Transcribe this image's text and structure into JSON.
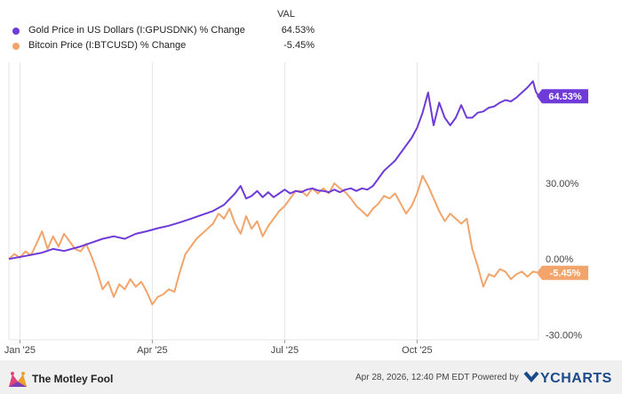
{
  "chart_data": {
    "type": "line",
    "legend": {
      "value_header": "VAL",
      "position": "top-left"
    },
    "series": [
      {
        "name": "Gold Price in US Dollars (I:GPUSDNK) % Change",
        "value_label": "64.53%",
        "end_value": 64.53,
        "color": "#6f3bd8",
        "points": [
          [
            0,
            0.0
          ],
          [
            3,
            1.2
          ],
          [
            6,
            2.5
          ],
          [
            8,
            4.0
          ],
          [
            10,
            3.2
          ],
          [
            13,
            5.0
          ],
          [
            15,
            6.5
          ],
          [
            17,
            8.0
          ],
          [
            19,
            9.0
          ],
          [
            21,
            8.0
          ],
          [
            23,
            10.0
          ],
          [
            25,
            11.0
          ],
          [
            27,
            12.2
          ],
          [
            29,
            13.2
          ],
          [
            31,
            14.5
          ],
          [
            33,
            16.0
          ],
          [
            35,
            17.5
          ],
          [
            37,
            19.0
          ],
          [
            39,
            21.5
          ],
          [
            41,
            26.0
          ],
          [
            42,
            29.0
          ],
          [
            43,
            24.0
          ],
          [
            44,
            25.0
          ],
          [
            45,
            27.0
          ],
          [
            46,
            24.5
          ],
          [
            47,
            26.5
          ],
          [
            48,
            24.5
          ],
          [
            49,
            26.0
          ],
          [
            50,
            27.5
          ],
          [
            51,
            26.0
          ],
          [
            52,
            27.0
          ],
          [
            53,
            26.5
          ],
          [
            54,
            27.5
          ],
          [
            55,
            28.0
          ],
          [
            56,
            27.2
          ],
          [
            57,
            27.0
          ],
          [
            58,
            26.5
          ],
          [
            59,
            27.5
          ],
          [
            60,
            26.5
          ],
          [
            61,
            27.5
          ],
          [
            62,
            28.0
          ],
          [
            63,
            27.0
          ],
          [
            64,
            28.0
          ],
          [
            65,
            27.5
          ],
          [
            66,
            29.0
          ],
          [
            67,
            32.0
          ],
          [
            68,
            35.0
          ],
          [
            69,
            37.0
          ],
          [
            70,
            39.0
          ],
          [
            71,
            42.0
          ],
          [
            72,
            45.0
          ],
          [
            73,
            48.0
          ],
          [
            74,
            52.0
          ],
          [
            75,
            58.0
          ],
          [
            76,
            66.0
          ],
          [
            77,
            53.0
          ],
          [
            78,
            62.0
          ],
          [
            79,
            56.0
          ],
          [
            80,
            53.0
          ],
          [
            81,
            56.0
          ],
          [
            82,
            61.0
          ],
          [
            83,
            56.0
          ],
          [
            84,
            56.0
          ],
          [
            85,
            58.0
          ],
          [
            86,
            58.5
          ],
          [
            87,
            60.0
          ],
          [
            88,
            60.5
          ],
          [
            89,
            62.0
          ],
          [
            90,
            63.0
          ],
          [
            91,
            62.5
          ],
          [
            92,
            64.0
          ],
          [
            93,
            66.0
          ],
          [
            94,
            68.0
          ],
          [
            95,
            70.5
          ],
          [
            95.5,
            66.5
          ],
          [
            96,
            64.53
          ]
        ]
      },
      {
        "name": "Bitcoin Price (I:BTCUSD) % Change",
        "value_label": "-5.45%",
        "end_value": -5.45,
        "color": "#f2a46a",
        "points": [
          [
            0,
            0.0
          ],
          [
            1,
            2.0
          ],
          [
            2,
            0.5
          ],
          [
            3,
            3.0
          ],
          [
            4,
            1.5
          ],
          [
            5,
            6.0
          ],
          [
            6,
            11.0
          ],
          [
            7,
            4.0
          ],
          [
            8,
            9.0
          ],
          [
            9,
            5.0
          ],
          [
            10,
            10.0
          ],
          [
            11,
            7.0
          ],
          [
            12,
            4.0
          ],
          [
            13,
            3.0
          ],
          [
            14,
            6.0
          ],
          [
            15,
            1.0
          ],
          [
            16,
            -5.0
          ],
          [
            17,
            -12.0
          ],
          [
            18,
            -9.0
          ],
          [
            19,
            -15.0
          ],
          [
            20,
            -10.0
          ],
          [
            21,
            -12.0
          ],
          [
            22,
            -8.0
          ],
          [
            23,
            -11.0
          ],
          [
            24,
            -9.0
          ],
          [
            25,
            -13.0
          ],
          [
            26,
            -18.0
          ],
          [
            27,
            -15.0
          ],
          [
            28,
            -14.0
          ],
          [
            29,
            -12.0
          ],
          [
            30,
            -13.0
          ],
          [
            31,
            -5.0
          ],
          [
            32,
            2.0
          ],
          [
            33,
            5.0
          ],
          [
            34,
            8.0
          ],
          [
            35,
            10.0
          ],
          [
            36,
            12.0
          ],
          [
            37,
            14.0
          ],
          [
            38,
            18.0
          ],
          [
            39,
            16.0
          ],
          [
            40,
            20.0
          ],
          [
            41,
            14.0
          ],
          [
            42,
            10.0
          ],
          [
            43,
            17.0
          ],
          [
            44,
            12.0
          ],
          [
            45,
            15.0
          ],
          [
            46,
            9.0
          ],
          [
            47,
            13.0
          ],
          [
            48,
            16.0
          ],
          [
            49,
            19.0
          ],
          [
            50,
            21.0
          ],
          [
            51,
            24.0
          ],
          [
            52,
            27.0
          ],
          [
            53,
            27.0
          ],
          [
            54,
            25.0
          ],
          [
            55,
            28.0
          ],
          [
            56,
            26.0
          ],
          [
            57,
            28.0
          ],
          [
            58,
            26.0
          ],
          [
            59,
            30.0
          ],
          [
            60,
            28.0
          ],
          [
            61,
            26.5
          ],
          [
            62,
            24.0
          ],
          [
            63,
            21.0
          ],
          [
            64,
            19.0
          ],
          [
            65,
            17.0
          ],
          [
            66,
            20.0
          ],
          [
            67,
            22.0
          ],
          [
            68,
            25.0
          ],
          [
            69,
            24.0
          ],
          [
            70,
            26.0
          ],
          [
            71,
            22.0
          ],
          [
            72,
            18.0
          ],
          [
            73,
            21.0
          ],
          [
            74,
            26.0
          ],
          [
            75,
            33.0
          ],
          [
            76,
            29.0
          ],
          [
            77,
            24.0
          ],
          [
            78,
            19.0
          ],
          [
            79,
            15.0
          ],
          [
            80,
            18.0
          ],
          [
            81,
            16.0
          ],
          [
            82,
            14.0
          ],
          [
            83,
            16.0
          ],
          [
            84,
            4.0
          ],
          [
            85,
            -3.0
          ],
          [
            86,
            -11.0
          ],
          [
            87,
            -6.0
          ],
          [
            88,
            -7.0
          ],
          [
            89,
            -4.0
          ],
          [
            90,
            -5.0
          ],
          [
            91,
            -8.0
          ],
          [
            92,
            -6.0
          ],
          [
            93,
            -5.0
          ],
          [
            94,
            -7.0
          ],
          [
            95,
            -5.0
          ],
          [
            96,
            -5.45
          ]
        ]
      }
    ],
    "x_ticks": [
      {
        "label": "Jan '25",
        "value": 2
      },
      {
        "label": "Apr '25",
        "value": 26
      },
      {
        "label": "Jul '25",
        "value": 50
      },
      {
        "label": "Oct '25",
        "value": 74
      }
    ],
    "xlim": [
      0,
      96
    ],
    "y_ticks": [
      {
        "label": "30.00%",
        "value": 30
      },
      {
        "label": "0.00%",
        "value": 0
      },
      {
        "label": "-30.00%",
        "value": -30
      }
    ],
    "ylim": [
      -32,
      78
    ],
    "grid": "vertical",
    "y_axis_position": "right"
  },
  "footer": {
    "brand": "The Motley Fool",
    "timestamp": "Apr 28, 2026, 12:40 PM EDT Powered by",
    "ycharts": "YCHARTS"
  },
  "colors": {
    "grid": "#e6e6e6",
    "axis_text": "#444444",
    "footer_bg": "#f0f0f0",
    "ycharts_blue": "#1b4a8a"
  }
}
